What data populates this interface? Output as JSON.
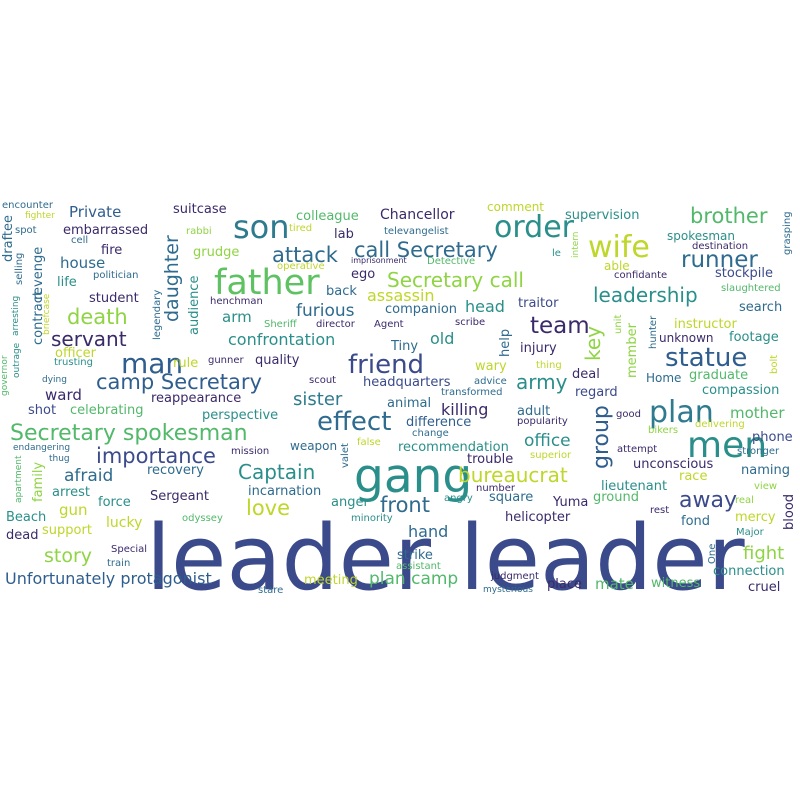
{
  "words": [
    {
      "text": "leader leader",
      "color": "#3b4a8a"
    },
    {
      "text": "gang",
      "color": "#2a8f8a"
    },
    {
      "text": "men",
      "color": "#2a8a8a"
    },
    {
      "text": "father",
      "color": "#5ec262"
    },
    {
      "text": "son",
      "color": "#2e7b8f"
    },
    {
      "text": "order",
      "color": "#2a8f8a"
    },
    {
      "text": "wife",
      "color": "#bfd62a"
    },
    {
      "text": "plan",
      "color": "#2e7b8f"
    },
    {
      "text": "statue",
      "color": "#2f5e8e"
    },
    {
      "text": "man",
      "color": "#2f5e8e"
    },
    {
      "text": "friend",
      "color": "#3b4a8a"
    },
    {
      "text": "effect",
      "color": "#2e6b8e"
    },
    {
      "text": "team",
      "color": "#3b2a6a"
    },
    {
      "text": "runner",
      "color": "#2e6b8e"
    },
    {
      "text": "brother",
      "color": "#52b86a"
    },
    {
      "text": "Secretary spokesman",
      "color": "#52b86a"
    },
    {
      "text": "camp Secretary",
      "color": "#2f5e8e"
    },
    {
      "text": "Secretary call",
      "color": "#8fd444"
    },
    {
      "text": "call Secretary",
      "color": "#2e6b8e"
    },
    {
      "text": "attack",
      "color": "#2e6b8e"
    },
    {
      "text": "leadership",
      "color": "#2a8f8a"
    },
    {
      "text": "death",
      "color": "#8fd444"
    },
    {
      "text": "servant",
      "color": "#3b2a6a"
    },
    {
      "text": "importance",
      "color": "#3b4a8a"
    },
    {
      "text": "Captain",
      "color": "#2a8f8a"
    },
    {
      "text": "bureaucrat",
      "color": "#bfd62a"
    },
    {
      "text": "front",
      "color": "#2e6b8e"
    },
    {
      "text": "love",
      "color": "#bfd62a"
    },
    {
      "text": "away",
      "color": "#3b4a8a"
    },
    {
      "text": "group",
      "color": "#2f5e8e"
    },
    {
      "text": "army",
      "color": "#2a8f8a"
    },
    {
      "text": "sister",
      "color": "#2e7b8f"
    },
    {
      "text": "daughter",
      "color": "#2e6b8e"
    },
    {
      "text": "key",
      "color": "#8fd444"
    },
    {
      "text": "fight",
      "color": "#8fd444"
    },
    {
      "text": "story",
      "color": "#8fd444"
    },
    {
      "text": "plan camp",
      "color": "#52b86a"
    },
    {
      "text": "Unfortunately protagonist",
      "color": "#2f5e8e"
    },
    {
      "text": "confrontation",
      "color": "#2a8f8a"
    },
    {
      "text": "furious",
      "color": "#2e6b8e"
    },
    {
      "text": "assassin",
      "color": "#bfd62a"
    },
    {
      "text": "house",
      "color": "#2e6b8e"
    },
    {
      "text": "afraid",
      "color": "#2e6b8e"
    },
    {
      "text": "killing",
      "color": "#3b2a6a"
    },
    {
      "text": "office",
      "color": "#2a8f8a"
    },
    {
      "text": "mother",
      "color": "#52b86a"
    },
    {
      "text": "head",
      "color": "#2a8f8a"
    },
    {
      "text": "hand",
      "color": "#2e6b8e"
    },
    {
      "text": "Private",
      "color": "#2f5e8e"
    },
    {
      "text": "colleague",
      "color": "#52b86a"
    },
    {
      "text": "Chancellor",
      "color": "#3b2a6a"
    },
    {
      "text": "suitcase",
      "color": "#3b2a6a"
    },
    {
      "text": "embarrassed",
      "color": "#3b2a6a"
    },
    {
      "text": "supervision",
      "color": "#2a8f8a"
    },
    {
      "text": "comment",
      "color": "#bfd62a"
    },
    {
      "text": "fire",
      "color": "#3b2a6a"
    },
    {
      "text": "grudge",
      "color": "#8fd444"
    },
    {
      "text": "lab",
      "color": "#3b2a6a"
    },
    {
      "text": "ego",
      "color": "#3b2a6a"
    },
    {
      "text": "back",
      "color": "#2e6b8e"
    },
    {
      "text": "life",
      "color": "#2a8f8a"
    },
    {
      "text": "student",
      "color": "#3b2a6a"
    },
    {
      "text": "arm",
      "color": "#2a8f8a"
    },
    {
      "text": "old",
      "color": "#2a8f8a"
    },
    {
      "text": "traitor",
      "color": "#3b4a8a"
    },
    {
      "text": "instructor",
      "color": "#bfd62a"
    },
    {
      "text": "footage",
      "color": "#2a8f8a"
    },
    {
      "text": "search",
      "color": "#2e6b8e"
    },
    {
      "text": "stockpile",
      "color": "#3b4a8a"
    },
    {
      "text": "spokesman",
      "color": "#2a8f8a"
    },
    {
      "text": "able",
      "color": "#bfd62a"
    },
    {
      "text": "confidante",
      "color": "#3b2a6a"
    },
    {
      "text": "unknown",
      "color": "#3b2a6a"
    },
    {
      "text": "graduate",
      "color": "#52b86a"
    },
    {
      "text": "compassion",
      "color": "#2a8f8a"
    },
    {
      "text": "Home",
      "color": "#2e6b8e"
    },
    {
      "text": "regard",
      "color": "#3b4a8a"
    },
    {
      "text": "deal",
      "color": "#3b2a6a"
    },
    {
      "text": "injury",
      "color": "#3b2a6a"
    },
    {
      "text": "wary",
      "color": "#bfd62a"
    },
    {
      "text": "companion",
      "color": "#2e6b8e"
    },
    {
      "text": "Tiny",
      "color": "#2e6b8e"
    },
    {
      "text": "quality",
      "color": "#3b2a6a"
    },
    {
      "text": "rule",
      "color": "#bfd62a"
    },
    {
      "text": "officer",
      "color": "#bfd62a"
    },
    {
      "text": "ward",
      "color": "#3b2a6a"
    },
    {
      "text": "shot",
      "color": "#3b4a8a"
    },
    {
      "text": "celebrating",
      "color": "#52b86a"
    },
    {
      "text": "perspective",
      "color": "#2a8f8a"
    },
    {
      "text": "reappearance",
      "color": "#3b2a6a"
    },
    {
      "text": "headquarters",
      "color": "#3b4a8a"
    },
    {
      "text": "animal",
      "color": "#2e6b8e"
    },
    {
      "text": "difference",
      "color": "#2f5e8e"
    },
    {
      "text": "recommendation",
      "color": "#2a8f8a"
    },
    {
      "text": "trouble",
      "color": "#3b2a6a"
    },
    {
      "text": "phone",
      "color": "#3b4a8a"
    },
    {
      "text": "unconscious",
      "color": "#3b2a6a"
    },
    {
      "text": "lieutenant",
      "color": "#2a8f8a"
    },
    {
      "text": "naming",
      "color": "#2e6b8e"
    },
    {
      "text": "recovery",
      "color": "#2e6b8e"
    },
    {
      "text": "weapon",
      "color": "#2e6b8e"
    },
    {
      "text": "incarnation",
      "color": "#2e6b8e"
    },
    {
      "text": "Sergeant",
      "color": "#3b2a6a"
    },
    {
      "text": "anger",
      "color": "#2a8f8a"
    },
    {
      "text": "square",
      "color": "#2e6b8e"
    },
    {
      "text": "Yuma",
      "color": "#3b2a6a"
    },
    {
      "text": "ground",
      "color": "#52b86a"
    },
    {
      "text": "helicopter",
      "color": "#3b2a6a"
    },
    {
      "text": "fond",
      "color": "#2e6b8e"
    },
    {
      "text": "mercy",
      "color": "#bfd62a"
    },
    {
      "text": "force",
      "color": "#2a8f8a"
    },
    {
      "text": "arrest",
      "color": "#2a8f8a"
    },
    {
      "text": "gun",
      "color": "#bfd62a"
    },
    {
      "text": "lucky",
      "color": "#bfd62a"
    },
    {
      "text": "support",
      "color": "#bfd62a"
    },
    {
      "text": "Beach",
      "color": "#2a8f8a"
    },
    {
      "text": "dead",
      "color": "#3b2a6a"
    },
    {
      "text": "strike",
      "color": "#2e6b8e"
    },
    {
      "text": "meeting",
      "color": "#bfd62a"
    },
    {
      "text": "place",
      "color": "#3b2a6a"
    },
    {
      "text": "mate",
      "color": "#52b86a"
    },
    {
      "text": "witness",
      "color": "#52b86a"
    },
    {
      "text": "connection",
      "color": "#2a8f8a"
    },
    {
      "text": "cruel",
      "color": "#3b2a6a"
    },
    {
      "text": "blood",
      "color": "#3b2a6a"
    },
    {
      "text": "race",
      "color": "#bfd62a"
    },
    {
      "text": "view",
      "color": "#8fd444"
    },
    {
      "text": "Major",
      "color": "#2a8f8a"
    },
    {
      "text": "real",
      "color": "#8fd444"
    },
    {
      "text": "rest",
      "color": "#3b2a6a"
    },
    {
      "text": "help",
      "color": "#2e6b8e"
    },
    {
      "text": "member",
      "color": "#8fd444"
    },
    {
      "text": "adult",
      "color": "#2e6b8e"
    },
    {
      "text": "popularity",
      "color": "#3b2a6a"
    },
    {
      "text": "audience",
      "color": "#2a8f8a"
    },
    {
      "text": "henchman",
      "color": "#3b2a6a"
    },
    {
      "text": "legendary",
      "color": "#2e6b8e"
    },
    {
      "text": "gunner",
      "color": "#3b2a6a"
    },
    {
      "text": "scout",
      "color": "#3b2a6a"
    },
    {
      "text": "Sheriff",
      "color": "#52b86a"
    },
    {
      "text": "director",
      "color": "#3b2a6a"
    },
    {
      "text": "Agent",
      "color": "#3b2a6a"
    },
    {
      "text": "scribe",
      "color": "#3b2a6a"
    },
    {
      "text": "advice",
      "color": "#2e6b8e"
    },
    {
      "text": "transformed",
      "color": "#2e6b8e"
    },
    {
      "text": "politician",
      "color": "#2e6b8e"
    },
    {
      "text": "operative",
      "color": "#bfd62a"
    },
    {
      "text": "Detective",
      "color": "#52b86a"
    },
    {
      "text": "imprisonment",
      "color": "#3b2a6a"
    },
    {
      "text": "televangelist",
      "color": "#2e6b8e"
    },
    {
      "text": "tired",
      "color": "#bfd62a"
    },
    {
      "text": "rabbi",
      "color": "#8fd444"
    },
    {
      "text": "cell",
      "color": "#2e6b8e"
    },
    {
      "text": "spot",
      "color": "#2e6b8e"
    },
    {
      "text": "fighter",
      "color": "#bfd62a"
    },
    {
      "text": "encounter",
      "color": "#2e6b8e"
    },
    {
      "text": "draftee",
      "color": "#2e6b8e"
    },
    {
      "text": "revenge",
      "color": "#2e6b8e"
    },
    {
      "text": "selling",
      "color": "#2e6b8e"
    },
    {
      "text": "contract",
      "color": "#2e6b8e"
    },
    {
      "text": "briefcase",
      "color": "#bfd62a"
    },
    {
      "text": "arresting",
      "color": "#2a8f8a"
    },
    {
      "text": "outrage",
      "color": "#2a8f8a"
    },
    {
      "text": "governor",
      "color": "#52b86a"
    },
    {
      "text": "trusting",
      "color": "#2a8f8a"
    },
    {
      "text": "dying",
      "color": "#2e6b8e"
    },
    {
      "text": "endangering",
      "color": "#2e6b8e"
    },
    {
      "text": "thug",
      "color": "#2e6b8e"
    },
    {
      "text": "family",
      "color": "#8fd444"
    },
    {
      "text": "apartment",
      "color": "#52b86a"
    },
    {
      "text": "odyssey",
      "color": "#52b86a"
    },
    {
      "text": "Special",
      "color": "#3b2a6a"
    },
    {
      "text": "train",
      "color": "#2e6b8e"
    },
    {
      "text": "stare",
      "color": "#2e6b8e"
    },
    {
      "text": "assistant",
      "color": "#52b86a"
    },
    {
      "text": "judgment",
      "color": "#3b2a6a"
    },
    {
      "text": "mysterious",
      "color": "#2e6b8e"
    },
    {
      "text": "number",
      "color": "#3b2a6a"
    },
    {
      "text": "superior",
      "color": "#bfd62a"
    },
    {
      "text": "angry",
      "color": "#2a8f8a"
    },
    {
      "text": "minority",
      "color": "#2a8f8a"
    },
    {
      "text": "valet",
      "color": "#2e6b8e"
    },
    {
      "text": "false",
      "color": "#bfd62a"
    },
    {
      "text": "mission",
      "color": "#3b2a6a"
    },
    {
      "text": "change",
      "color": "#2e6b8e"
    },
    {
      "text": "good",
      "color": "#3b2a6a"
    },
    {
      "text": "bikers",
      "color": "#8fd444"
    },
    {
      "text": "delivering",
      "color": "#bfd62a"
    },
    {
      "text": "attempt",
      "color": "#3b2a6a"
    },
    {
      "text": "stronger",
      "color": "#2e6b8e"
    },
    {
      "text": "thing",
      "color": "#bfd62a"
    },
    {
      "text": "hunter",
      "color": "#2e6b8e"
    },
    {
      "text": "unit",
      "color": "#8fd444"
    },
    {
      "text": "bolt",
      "color": "#bfd62a"
    },
    {
      "text": "slaughtered",
      "color": "#52b86a"
    },
    {
      "text": "destination",
      "color": "#3b2a6a"
    },
    {
      "text": "grasping",
      "color": "#2e6b8e"
    },
    {
      "text": "intern",
      "color": "#8fd444"
    },
    {
      "text": "le",
      "color": "#2a8f8a"
    },
    {
      "text": "One",
      "color": "#2e6b8e"
    }
  ]
}
